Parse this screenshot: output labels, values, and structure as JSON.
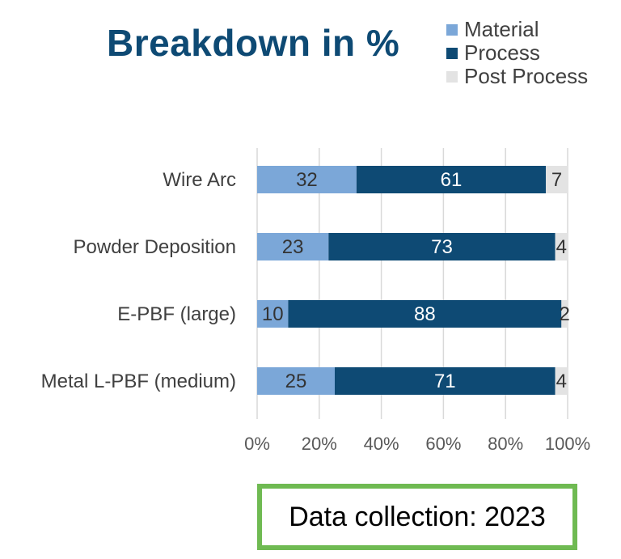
{
  "chart_data": {
    "type": "bar",
    "orientation": "horizontal",
    "stacked": true,
    "title": "Breakdown in %",
    "categories": [
      "Wire Arc",
      "Powder Deposition",
      "E-PBF (large)",
      "Metal L-PBF (medium)"
    ],
    "series": [
      {
        "name": "Material",
        "values": [
          32,
          23,
          10,
          25
        ],
        "color": "#7ba7d8",
        "label_color": "#333333"
      },
      {
        "name": "Process",
        "values": [
          61,
          73,
          88,
          71
        ],
        "color": "#0e4a74",
        "label_color": "#ffffff"
      },
      {
        "name": "Post Process",
        "values": [
          7,
          4,
          2,
          4
        ],
        "color": "#e3e3e3",
        "label_color": "#333333"
      }
    ],
    "xlim": [
      0,
      100
    ],
    "x_ticks": [
      "0%",
      "20%",
      "40%",
      "60%",
      "80%",
      "100%"
    ],
    "grid": true,
    "legend_position": "top-right"
  },
  "footer": {
    "text": "Data collection: 2023",
    "border_color": "#6fba52"
  }
}
